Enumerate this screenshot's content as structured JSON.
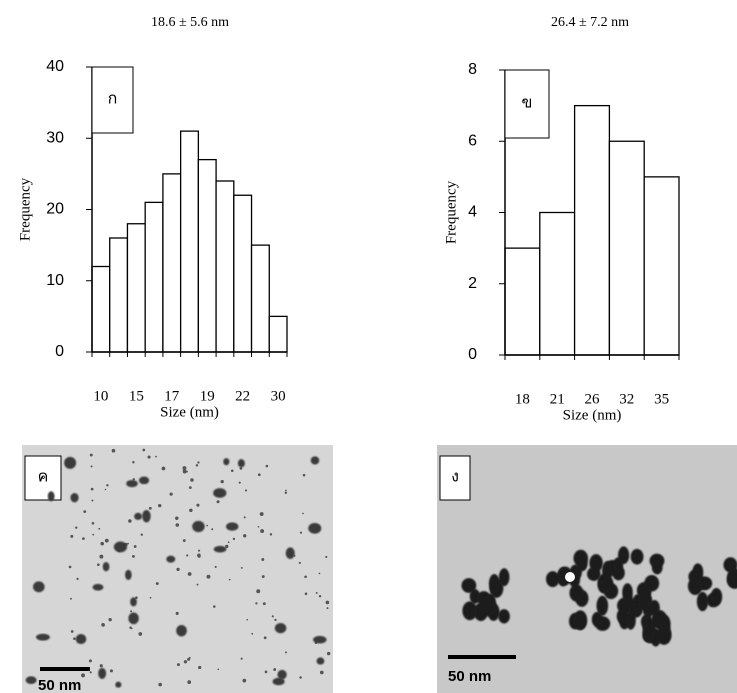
{
  "chart_data": [
    {
      "type": "bar",
      "title": "18.6 ± 5.6 nm",
      "panel_label": "ก",
      "x_label": "Size (nm)",
      "y_label": "Frequency",
      "categories": [
        "10",
        null,
        "15",
        null,
        "17",
        null,
        "19",
        null,
        "22",
        null,
        "30"
      ],
      "values": [
        12,
        16,
        18,
        21,
        25,
        31,
        27,
        24,
        22,
        15,
        5
      ],
      "color": "#ffffff",
      "ylim": [
        0,
        40
      ],
      "yticks": [
        0,
        10,
        20,
        30,
        40
      ]
    },
    {
      "type": "bar",
      "title": "26.4 ± 7.2 nm",
      "panel_label": "ข",
      "x_label": "Size (nm)",
      "y_label": "Frequency",
      "categories": [
        "18",
        "21",
        "26",
        "32",
        "35"
      ],
      "values": [
        3,
        4,
        7,
        6,
        5
      ],
      "color": "#ffffff",
      "ylim": [
        0,
        8
      ],
      "yticks": [
        0,
        2,
        4,
        6,
        8
      ]
    }
  ],
  "images": [
    {
      "panel_label": "ค",
      "scale_bar": "50 nm"
    },
    {
      "panel_label": "ง",
      "scale_bar": "50 nm"
    }
  ]
}
